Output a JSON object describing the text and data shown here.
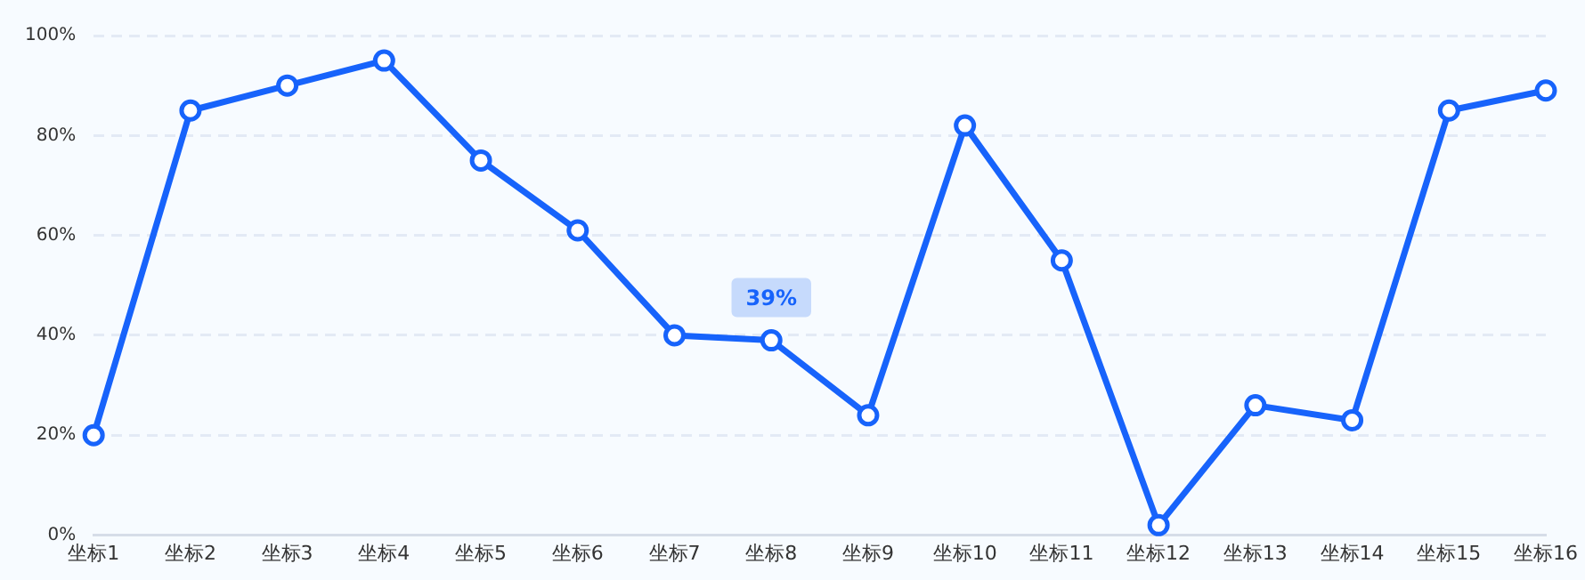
{
  "chart_data": {
    "type": "line",
    "categories": [
      "坐标1",
      "坐标2",
      "坐标3",
      "坐标4",
      "坐标5",
      "坐标6",
      "坐标7",
      "坐标8",
      "坐标9",
      "坐标10",
      "坐标11",
      "坐标12",
      "坐标13",
      "坐标14",
      "坐标15",
      "坐标16"
    ],
    "series": [
      {
        "color": "#1763fb",
        "values": [
          20,
          85,
          90,
          95,
          75,
          61,
          40,
          39,
          24,
          82,
          55,
          2,
          26,
          23,
          85,
          89
        ],
        "value_labels": [
          null,
          null,
          null,
          null,
          null,
          null,
          null,
          "39%",
          null,
          null,
          null,
          null,
          null,
          null,
          null,
          null
        ]
      }
    ],
    "ylim": [
      0,
      100
    ],
    "yticks": [
      {
        "value": 0,
        "label": "0%"
      },
      {
        "value": 20,
        "label": "20%"
      },
      {
        "value": 40,
        "label": "40%"
      },
      {
        "value": 60,
        "label": "60%"
      },
      {
        "value": 80,
        "label": "80%"
      },
      {
        "value": 100,
        "label": "100%"
      }
    ],
    "grid": "y",
    "marker": "circle",
    "line_style": "solid",
    "legend": false
  }
}
